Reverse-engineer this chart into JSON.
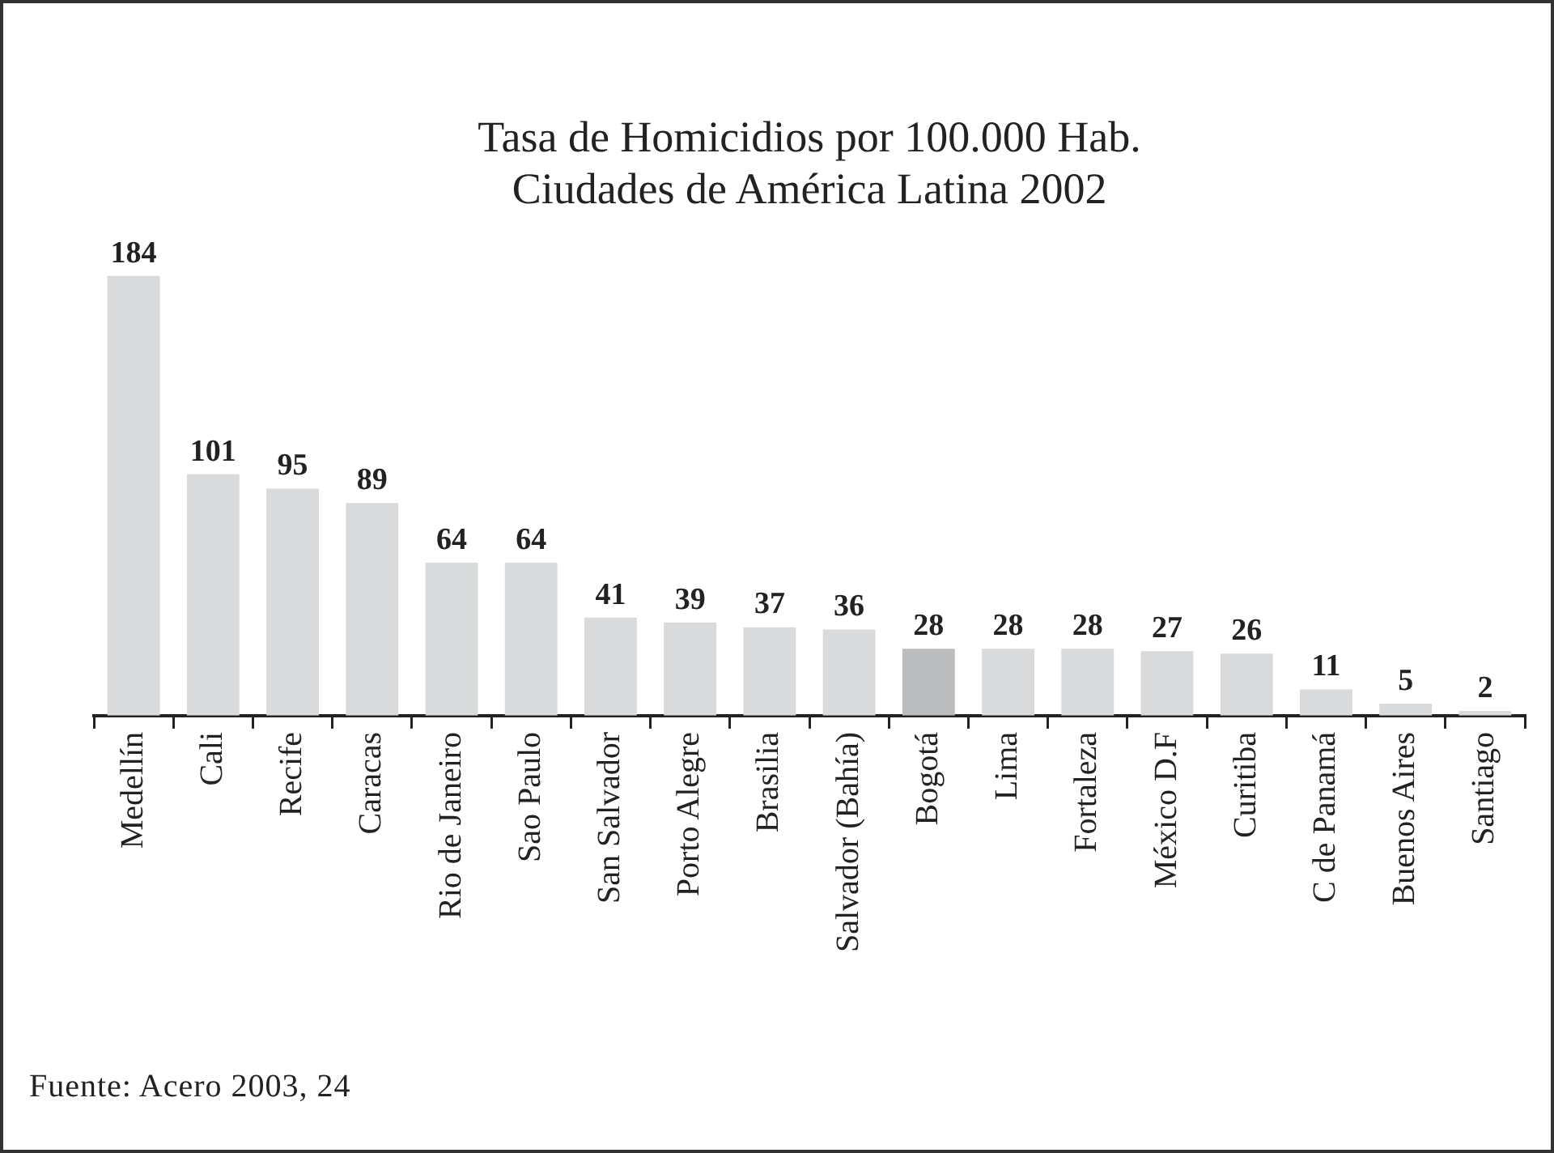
{
  "chart_data": {
    "type": "bar",
    "title": [
      "Tasa de Homicidios por 100.000 Hab.",
      "Ciudades de América Latina 2002"
    ],
    "categories": [
      "Medellín",
      "Cali",
      "Recife",
      "Caracas",
      "Rio de Janeiro",
      "Sao Paulo",
      "San Salvador",
      "Porto Alegre",
      "Brasilia",
      "Salvador (Bahía)",
      "Bogotá",
      "Lima",
      "Fortaleza",
      "México D.F",
      "Curitiba",
      "C de Panamá",
      "Buenos Aires",
      "Santiago"
    ],
    "values": [
      184,
      101,
      95,
      89,
      64,
      64,
      41,
      39,
      37,
      36,
      28,
      28,
      28,
      27,
      26,
      11,
      5,
      2
    ],
    "colors": [
      "#d9dadb",
      "#d9dadb",
      "#d9dadb",
      "#d9dadb",
      "#d9dadb",
      "#d9dadb",
      "#d9dadb",
      "#d9dadb",
      "#d9dadb",
      "#d9dadb",
      "#bbbcbe",
      "#d9dadb",
      "#d9dadb",
      "#d9dadb",
      "#d9dadb",
      "#d9dadb",
      "#d9dadb",
      "#d9dadb"
    ],
    "data_labels": true,
    "grid": false,
    "legend": false,
    "annotations": [
      "Fuente: Acero 2003, 24"
    ]
  }
}
